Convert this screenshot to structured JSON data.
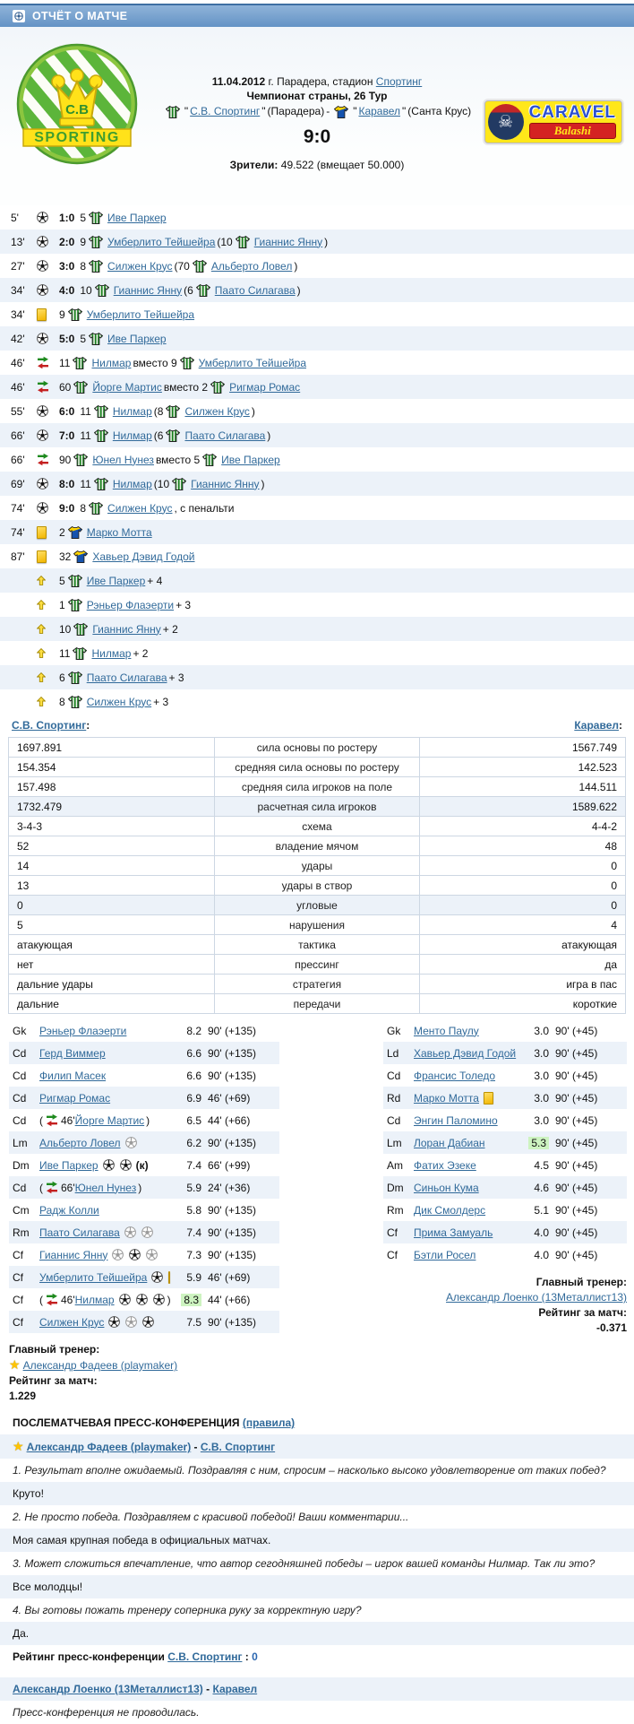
{
  "header": {
    "title": "ОТЧЁТ О МАТЧЕ"
  },
  "match": {
    "date": "11.04.2012",
    "location": " г. Парадера, стадион ",
    "stadium": "Спортинг",
    "tournament": "Чемпионат страны, 26 Тур",
    "q": "\"",
    "dash": " - ",
    "home_name": "С.В. Спортинг",
    "home_city": " (Парадера)",
    "away_name": "Каравел",
    "away_city": " (Санта Крус)",
    "score": "9:0",
    "attendance_label": "Зрители:",
    "attendance_value": " 49.522 (вмещает 50.000)",
    "home_logo": {
      "crown_text": "C.B",
      "ribbon_text": "SPORTING"
    },
    "away_logo": {
      "line1": "CARAVEL",
      "line2": "Balashi",
      "skull": "☠"
    }
  },
  "labels": {
    "sub_word": "вместо"
  },
  "events": [
    {
      "time": "5'",
      "type": "goal",
      "score": "1:0",
      "player": {
        "num": "5",
        "shirt": "home",
        "name": "Иве Паркер"
      }
    },
    {
      "time": "13'",
      "type": "goal",
      "score": "2:0",
      "player": {
        "num": "9",
        "shirt": "home",
        "name": "Умберлито Тейшейра"
      },
      "assist": {
        "num": "10",
        "shirt": "home",
        "name": "Гианнис Янну"
      }
    },
    {
      "time": "27'",
      "type": "goal",
      "score": "3:0",
      "player": {
        "num": "8",
        "shirt": "home",
        "name": "Силжен Крус"
      },
      "assist": {
        "num": "70",
        "shirt": "home",
        "name": "Альберто Ловел"
      }
    },
    {
      "time": "34'",
      "type": "goal",
      "score": "4:0",
      "player": {
        "num": "10",
        "shirt": "home",
        "name": "Гианнис Янну"
      },
      "assist": {
        "num": "6",
        "shirt": "home",
        "name": "Паато Силагава"
      }
    },
    {
      "time": "34'",
      "type": "yellow",
      "player": {
        "num": "9",
        "shirt": "home",
        "name": "Умберлито Тейшейра"
      }
    },
    {
      "time": "42'",
      "type": "goal",
      "score": "5:0",
      "player": {
        "num": "5",
        "shirt": "home",
        "name": "Иве Паркер"
      }
    },
    {
      "time": "46'",
      "type": "sub",
      "player": {
        "num": "11",
        "shirt": "home",
        "name": "Нилмар"
      },
      "out": {
        "num": "9",
        "shirt": "home",
        "name": "Умберлито Тейшейра"
      }
    },
    {
      "time": "46'",
      "type": "sub",
      "player": {
        "num": "60",
        "shirt": "home",
        "name": "Йорге Мартис"
      },
      "out": {
        "num": "2",
        "shirt": "home",
        "name": "Ригмар Ромас"
      }
    },
    {
      "time": "55'",
      "type": "goal",
      "score": "6:0",
      "player": {
        "num": "11",
        "shirt": "home",
        "name": "Нилмар"
      },
      "assist": {
        "num": "8",
        "shirt": "home",
        "name": "Силжен Крус"
      }
    },
    {
      "time": "66'",
      "type": "goal",
      "score": "7:0",
      "player": {
        "num": "11",
        "shirt": "home",
        "name": "Нилмар"
      },
      "assist": {
        "num": "6",
        "shirt": "home",
        "name": "Паато Силагава"
      }
    },
    {
      "time": "66'",
      "type": "sub",
      "player": {
        "num": "90",
        "shirt": "home",
        "name": "Юнел Нунез"
      },
      "out": {
        "num": "5",
        "shirt": "home",
        "name": "Иве Паркер"
      }
    },
    {
      "time": "69'",
      "type": "goal",
      "score": "8:0",
      "player": {
        "num": "11",
        "shirt": "home",
        "name": "Нилмар"
      },
      "assist": {
        "num": "10",
        "shirt": "home",
        "name": "Гианнис Янну"
      }
    },
    {
      "time": "74'",
      "type": "goal",
      "score": "9:0",
      "player": {
        "num": "8",
        "shirt": "home",
        "name": "Силжен Крус"
      },
      "note": ", с пенальти"
    },
    {
      "time": "74'",
      "type": "yellow",
      "player": {
        "num": "2",
        "shirt": "away",
        "name": "Марко Мотта"
      }
    },
    {
      "time": "87'",
      "type": "yellow",
      "player": {
        "num": "32",
        "shirt": "away",
        "name": "Хавьер Дэвид Годой"
      }
    },
    {
      "type": "bonus",
      "player": {
        "num": "5",
        "shirt": "home",
        "name": "Иве Паркер"
      },
      "bonus": "+ 4"
    },
    {
      "type": "bonus",
      "player": {
        "num": "1",
        "shirt": "home",
        "name": "Рэньер Флаэерти"
      },
      "bonus": "+ 3"
    },
    {
      "type": "bonus",
      "player": {
        "num": "10",
        "shirt": "home",
        "name": "Гианнис Янну"
      },
      "bonus": "+ 2"
    },
    {
      "type": "bonus",
      "player": {
        "num": "11",
        "shirt": "home",
        "name": "Нилмар"
      },
      "bonus": "+ 2"
    },
    {
      "type": "bonus",
      "player": {
        "num": "6",
        "shirt": "home",
        "name": "Паато Силагава"
      },
      "bonus": "+ 3"
    },
    {
      "type": "bonus",
      "player": {
        "num": "8",
        "shirt": "home",
        "name": "Силжен Крус"
      },
      "bonus": "+ 3"
    }
  ],
  "teams_header": {
    "home": "С.В. Спортинг",
    "away": "Каравел",
    "colon": ":"
  },
  "stats": {
    "rows": [
      [
        "1697.891",
        "сила основы по ростеру",
        "1567.749"
      ],
      [
        "154.354",
        "средняя сила основы по ростеру",
        "142.523"
      ],
      [
        "157.498",
        "средняя сила игроков на поле",
        "144.511"
      ],
      [
        "1732.479",
        "расчетная сила игроков",
        "1589.622"
      ],
      [
        "3-4-3",
        "схема",
        "4-4-2"
      ],
      [
        "52",
        "владение мячом",
        "48"
      ],
      [
        "14",
        "удары",
        "0"
      ],
      [
        "13",
        "удары в створ",
        "0"
      ],
      [
        "0",
        "угловые",
        "0"
      ],
      [
        "5",
        "нарушения",
        "4"
      ],
      [
        "атакующая",
        "тактика",
        "атакующая"
      ],
      [
        "нет",
        "прессинг",
        "да"
      ],
      [
        "дальние удары",
        "стратегия",
        "игра в пас"
      ],
      [
        "дальние",
        "передачи",
        "короткие"
      ]
    ]
  },
  "lineups": {
    "home": {
      "players": [
        {
          "pos": "Gk",
          "name": "Рэньер Флаэерти",
          "rating": "8.2",
          "time": "90' (+135)"
        },
        {
          "pos": "Cd",
          "name": "Герд Виммер",
          "rating": "6.6",
          "time": "90' (+135)"
        },
        {
          "pos": "Cd",
          "name": "Филип Масек",
          "rating": "6.6",
          "time": "90' (+135)"
        },
        {
          "pos": "Cd",
          "name": "Ригмар Ромас",
          "rating": "6.9",
          "time": "46' (+69)"
        },
        {
          "pos": "Cd",
          "sub_in": "46'",
          "name": "Йорге Мартис",
          "rating": "6.5",
          "time": "44' (+66)"
        },
        {
          "pos": "Lm",
          "name": "Альберто Ловел",
          "icons": [
            "assist"
          ],
          "rating": "6.2",
          "time": "90' (+135)"
        },
        {
          "pos": "Dm",
          "name": "Иве Паркер",
          "icons": [
            "goal",
            "goal"
          ],
          "captain": true,
          "rating": "7.4",
          "time": "66' (+99)"
        },
        {
          "pos": "Cd",
          "sub_in": "66'",
          "name": "Юнел Нунез",
          "rating": "5.9",
          "time": "24' (+36)"
        },
        {
          "pos": "Cm",
          "name": "Радж Колли",
          "rating": "5.8",
          "time": "90' (+135)"
        },
        {
          "pos": "Rm",
          "name": "Паато Силагава",
          "icons": [
            "assist",
            "assist"
          ],
          "rating": "7.4",
          "time": "90' (+135)"
        },
        {
          "pos": "Cf",
          "name": "Гианнис Янну",
          "icons": [
            "assist",
            "goal",
            "assist"
          ],
          "rating": "7.3",
          "time": "90' (+135)"
        },
        {
          "pos": "Cf",
          "name": "Умберлито Тейшейра",
          "icons": [
            "goal",
            "yellow"
          ],
          "rating": "5.9",
          "time": "46' (+69)"
        },
        {
          "pos": "Cf",
          "sub_in": "46'",
          "name": "Нилмар",
          "icons": [
            "goal",
            "goal",
            "goal"
          ],
          "rating": "8.3",
          "best": true,
          "time": "44' (+66)"
        },
        {
          "pos": "Cf",
          "name": "Силжен Крус",
          "icons": [
            "goal",
            "assist",
            "goal"
          ],
          "rating": "7.5",
          "time": "90' (+135)"
        }
      ],
      "coach_label": "Главный тренер:",
      "coach": "Александр Фадеев (playmaker)",
      "rating_label": "Рейтинг за матч:",
      "rating": "1.229"
    },
    "away": {
      "players": [
        {
          "pos": "Gk",
          "name": "Менто Паулу",
          "rating": "3.0",
          "time": "90' (+45)"
        },
        {
          "pos": "Ld",
          "name": "Хавьер Дэвид Годой",
          "icons": [
            "yellow"
          ],
          "rating": "3.0",
          "time": "90' (+45)"
        },
        {
          "pos": "Cd",
          "name": "Франсис Толедо",
          "rating": "3.0",
          "time": "90' (+45)"
        },
        {
          "pos": "Rd",
          "name": "Марко Мотта",
          "icons": [
            "yellow"
          ],
          "rating": "3.0",
          "time": "90' (+45)"
        },
        {
          "pos": "Cd",
          "name": "Энгин Паломино",
          "rating": "3.0",
          "time": "90' (+45)"
        },
        {
          "pos": "Lm",
          "name": "Лоран Дабиан",
          "rating": "5.3",
          "best": true,
          "time": "90' (+45)"
        },
        {
          "pos": "Am",
          "name": "Фатих Эзеке",
          "rating": "4.5",
          "time": "90' (+45)"
        },
        {
          "pos": "Dm",
          "name": "Синьон Кума",
          "rating": "4.6",
          "time": "90' (+45)"
        },
        {
          "pos": "Rm",
          "name": "Дик Смолдерс",
          "rating": "5.1",
          "time": "90' (+45)"
        },
        {
          "pos": "Cf",
          "name": "Прима Замуаль",
          "rating": "4.0",
          "time": "90' (+45)"
        },
        {
          "pos": "Cf",
          "name": "Бэтли Росел",
          "rating": "4.0",
          "time": "90' (+45)"
        }
      ],
      "coach_label": "Главный тренер:",
      "coach": "Александр Лоенко (13Металлист13)",
      "rating_label": "Рейтинг за матч:",
      "rating": "-0.371"
    }
  },
  "press": {
    "title": "ПОСЛЕМАТЧЕВАЯ ПРЕСС-КОНФЕРЕНЦИЯ",
    "rules_link": "(правила)",
    "home_coach": "Александр Фадеев (playmaker)",
    "home_team": "С.В. Спортинг",
    "dash": " - ",
    "qa": [
      {
        "q": "1. Результат вполне ожидаемый. Поздравляя с ним, спросим – насколько высоко удовлетворение от таких побед?",
        "a": "Круто!"
      },
      {
        "q": "2. Не просто победа. Поздравляем с красивой победой! Ваши комментарии...",
        "a": "Моя самая крупная победа в официальных матчах."
      },
      {
        "q": "3. Может сложиться впечатление, что автор сегодняшней победы – игрок вашей команды Нилмар. Так ли это?",
        "a": "Все молодцы!"
      },
      {
        "q": "4. Вы готовы пожать тренеру соперника руку за корректную игру?",
        "a": "Да."
      }
    ],
    "rating_label": "Рейтинг пресс-конференции ",
    "rating_team": "С.В. Спортинг",
    "rating_sep": " : ",
    "rating_value": "0",
    "away_coach": "Александр Лоенко (13Металлист13)",
    "away_team": "Каравел",
    "away_note": "Пресс-конференция не проводилась."
  },
  "colors": {
    "topbar_blue": "#6493c5",
    "link_blue": "#316a9a",
    "row_stripe": "#ecf2f9",
    "best_highlight": "#cdf3c0",
    "yellow_card": "#f2b600",
    "home_green": "#17801c",
    "away_blue": "#1553ae",
    "away_yellow": "#ffd400"
  }
}
